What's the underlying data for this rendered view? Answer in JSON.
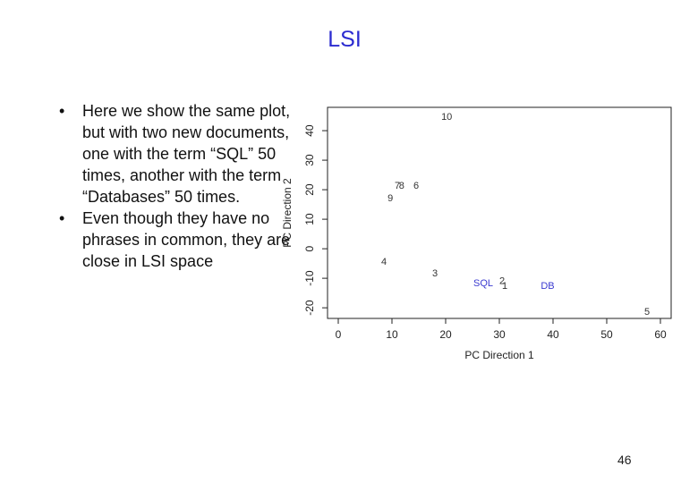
{
  "title": "LSI",
  "bullets": [
    "Here we show the same plot, but with two new documents, one with the term “SQL” 50 times, another with the term “Databases” 50 times.",
    "Even though they have no phrases in common, they are close in LSI space"
  ],
  "page_number": "46",
  "chart_data": {
    "type": "scatter",
    "xlabel": "PC Direction 1",
    "ylabel": "PC Direction 2",
    "labels": [
      "10",
      "7",
      "8",
      "6",
      "9",
      "4",
      "3",
      "SQL",
      "2",
      "1",
      "DB",
      "5"
    ],
    "x": [
      20.2,
      11,
      11.8,
      14.5,
      9.7,
      8.5,
      18,
      27,
      30.5,
      31,
      39,
      57.5
    ],
    "y": [
      44.5,
      21.2,
      21.2,
      21.2,
      17,
      -4.5,
      -8.5,
      -11.8,
      -11,
      -12.7,
      -12.7,
      -21.5
    ],
    "colors": [
      "#333333",
      "#333333",
      "#333333",
      "#333333",
      "#333333",
      "#333333",
      "#333333",
      "#3a3ad0",
      "#333333",
      "#333333",
      "#3a3ad0",
      "#333333"
    ],
    "xlim": [
      -2,
      62
    ],
    "ylim": [
      -23.6,
      47.9
    ],
    "xticks": [
      0,
      10,
      20,
      30,
      40,
      50,
      60
    ],
    "yticks": [
      -20,
      -10,
      0,
      10,
      20,
      30,
      40
    ]
  }
}
